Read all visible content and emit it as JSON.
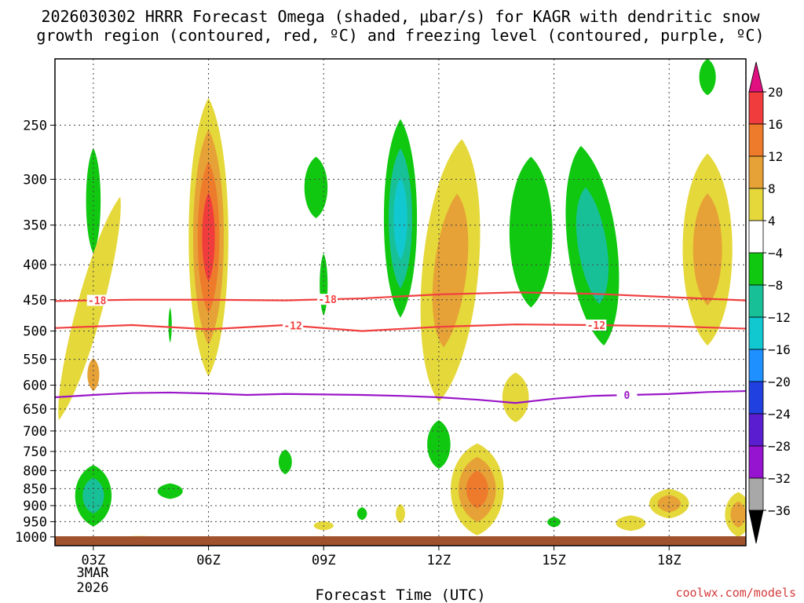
{
  "chart_data": {
    "type": "heatmap",
    "title_line1": "2026030302 HRRR Forecast Omega (shaded, μbar/s) for KAGR with dendritic snow",
    "title_line2": "growth region (contoured, red, ºC) and freezing level (contoured, purple, ºC)",
    "xlabel": "Forecast Time (UTC)",
    "ylabel": "",
    "credit": "coolwx.com/models",
    "x_range": [
      2,
      20
    ],
    "x_ticks": [
      {
        "x": 3,
        "label": "03Z"
      },
      {
        "x": 6,
        "label": "06Z"
      },
      {
        "x": 9,
        "label": "09Z"
      },
      {
        "x": 12,
        "label": "12Z"
      },
      {
        "x": 15,
        "label": "15Z"
      },
      {
        "x": 18,
        "label": "18Z"
      }
    ],
    "date_label": [
      "3MAR",
      "2026"
    ],
    "y_ticks": [
      250,
      300,
      350,
      400,
      450,
      500,
      550,
      600,
      650,
      700,
      750,
      800,
      850,
      900,
      950,
      1000
    ],
    "y_range_hpa": [
      200,
      1030
    ],
    "colorbar": {
      "labels": [
        "20",
        "16",
        "12",
        "8",
        "4",
        "−4",
        "−8",
        "−12",
        "−16",
        "−20",
        "−24",
        "−28",
        "−32",
        "−36"
      ],
      "label_values": [
        20,
        16,
        12,
        8,
        4,
        -4,
        -8,
        -12,
        -16,
        -20,
        -24,
        -28,
        -32,
        -36
      ],
      "bins": [
        {
          "lo": 16,
          "hi": 20,
          "color": "#f03c3c"
        },
        {
          "lo": 12,
          "hi": 16,
          "color": "#ee7a2c"
        },
        {
          "lo": 8,
          "hi": 12,
          "color": "#e6a236"
        },
        {
          "lo": 4,
          "hi": 8,
          "color": "#e5d83a"
        },
        {
          "lo": -4,
          "hi": 4,
          "color": "#ffffff"
        },
        {
          "lo": -8,
          "hi": -4,
          "color": "#10c810"
        },
        {
          "lo": -12,
          "hi": -8,
          "color": "#18c098"
        },
        {
          "lo": -16,
          "hi": -12,
          "color": "#12c8d0"
        },
        {
          "lo": -20,
          "hi": -16,
          "color": "#1e90ff"
        },
        {
          "lo": -24,
          "hi": -20,
          "color": "#2040e0"
        },
        {
          "lo": -28,
          "hi": -24,
          "color": "#5a1ed0"
        },
        {
          "lo": -32,
          "hi": -28,
          "color": "#9614d0"
        },
        {
          "lo": -36,
          "hi": -32,
          "color": "#a8a8a8"
        }
      ],
      "top_arrow_color": "#e01080",
      "bottom_arrow_color": "#000000"
    },
    "omega_cells": [
      {
        "x": 3.0,
        "p_top": 270,
        "p_bot": 385,
        "halfwidth": 0.22,
        "levels": [
          -4
        ]
      },
      {
        "x": 2.9,
        "p_top": 318,
        "p_bot": 675,
        "halfwidth": 0.4,
        "levels": [
          4
        ],
        "tilt": 1.6
      },
      {
        "x": 3.0,
        "p_top": 548,
        "p_bot": 612,
        "halfwidth": 0.18,
        "levels": [
          8
        ]
      },
      {
        "x": 6.0,
        "p_top": 228,
        "p_bot": 583,
        "halfwidth": 0.6,
        "levels": [
          4,
          8,
          12,
          16
        ]
      },
      {
        "x": 8.8,
        "p_top": 278,
        "p_bot": 342,
        "halfwidth": 0.35,
        "levels": [
          -4
        ]
      },
      {
        "x": 9.0,
        "p_top": 385,
        "p_bot": 475,
        "halfwidth": 0.12,
        "levels": [
          -4
        ]
      },
      {
        "x": 5.0,
        "p_top": 462,
        "p_bot": 520,
        "halfwidth": 0.05,
        "levels": [
          -4
        ]
      },
      {
        "x": 11.0,
        "p_top": 245,
        "p_bot": 478,
        "halfwidth": 0.5,
        "levels": [
          -4,
          -8,
          -12
        ]
      },
      {
        "x": 12.3,
        "p_top": 262,
        "p_bot": 635,
        "halfwidth": 0.85,
        "levels": [
          4,
          8
        ],
        "tilt": 0.6
      },
      {
        "x": 14.4,
        "p_top": 278,
        "p_bot": 462,
        "halfwidth": 0.65,
        "levels": [
          -4
        ]
      },
      {
        "x": 16.0,
        "p_top": 268,
        "p_bot": 525,
        "halfwidth": 0.75,
        "levels": [
          -4,
          -8
        ],
        "tilt": -0.6
      },
      {
        "x": 14.0,
        "p_top": 575,
        "p_bot": 680,
        "halfwidth": 0.4,
        "levels": [
          4
        ]
      },
      {
        "x": 19.0,
        "p_top": 275,
        "p_bot": 525,
        "halfwidth": 0.75,
        "levels": [
          4,
          8
        ]
      },
      {
        "x": 19.0,
        "p_top": 200,
        "p_bot": 226,
        "halfwidth": 0.25,
        "levels": [
          -4
        ]
      },
      {
        "x": 3.0,
        "p_top": 785,
        "p_bot": 965,
        "halfwidth": 0.55,
        "levels": [
          -4,
          -8
        ]
      },
      {
        "x": 5.0,
        "p_top": 835,
        "p_bot": 880,
        "halfwidth": 0.38,
        "levels": [
          -4
        ]
      },
      {
        "x": 8.0,
        "p_top": 745,
        "p_bot": 810,
        "halfwidth": 0.2,
        "levels": [
          -4
        ]
      },
      {
        "x": 12.0,
        "p_top": 675,
        "p_bot": 795,
        "halfwidth": 0.35,
        "levels": [
          -4
        ]
      },
      {
        "x": 13.0,
        "p_top": 730,
        "p_bot": 995,
        "halfwidth": 0.8,
        "levels": [
          4,
          8,
          12
        ]
      },
      {
        "x": 9.0,
        "p_top": 948,
        "p_bot": 978,
        "halfwidth": 0.3,
        "levels": [
          4
        ]
      },
      {
        "x": 10.0,
        "p_top": 905,
        "p_bot": 945,
        "halfwidth": 0.15,
        "levels": [
          -4
        ]
      },
      {
        "x": 11.0,
        "p_top": 895,
        "p_bot": 955,
        "halfwidth": 0.14,
        "levels": [
          4
        ]
      },
      {
        "x": 15.0,
        "p_top": 935,
        "p_bot": 968,
        "halfwidth": 0.2,
        "levels": [
          -4
        ]
      },
      {
        "x": 18.0,
        "p_top": 850,
        "p_bot": 940,
        "halfwidth": 0.6,
        "levels": [
          4,
          8
        ]
      },
      {
        "x": 17.0,
        "p_top": 930,
        "p_bot": 980,
        "halfwidth": 0.45,
        "levels": [
          4
        ]
      },
      {
        "x": 19.8,
        "p_top": 860,
        "p_bot": 1000,
        "halfwidth": 0.4,
        "levels": [
          4,
          8
        ]
      },
      {
        "x": 4.2,
        "p_top": 997,
        "p_bot": 1004,
        "halfwidth": 0.45,
        "levels": [
          4
        ]
      }
    ],
    "contours": [
      {
        "name": "dgz-minus18",
        "label": "-18",
        "color": "#f04040",
        "x": [
          2,
          4,
          6,
          8,
          10,
          12,
          14,
          16,
          18,
          20
        ],
        "p": [
          452,
          450,
          450,
          451,
          448,
          442,
          439,
          441,
          446,
          451
        ],
        "label_x": [
          3.1,
          9.1
        ]
      },
      {
        "name": "dgz-minus12",
        "label": "-12",
        "color": "#f04040",
        "x": [
          2,
          4,
          6,
          8,
          10,
          12,
          14,
          16,
          18,
          20
        ],
        "p": [
          495,
          490,
          497,
          490,
          500,
          493,
          489,
          490,
          492,
          496
        ],
        "label_x": [
          8.2,
          16.1
        ]
      },
      {
        "name": "freezing-level",
        "label": "0",
        "color": "#9a16c8",
        "x": [
          2,
          3,
          4,
          5,
          6,
          7,
          8,
          9,
          10,
          11,
          12,
          13,
          14,
          15,
          16,
          17,
          18,
          19,
          20
        ],
        "p": [
          625,
          620,
          616,
          615,
          617,
          620,
          618,
          619,
          620,
          622,
          625,
          630,
          637,
          628,
          622,
          620,
          618,
          614,
          612
        ],
        "label_x": [
          16.9
        ]
      }
    ],
    "terrain_color": "#a0522d"
  }
}
